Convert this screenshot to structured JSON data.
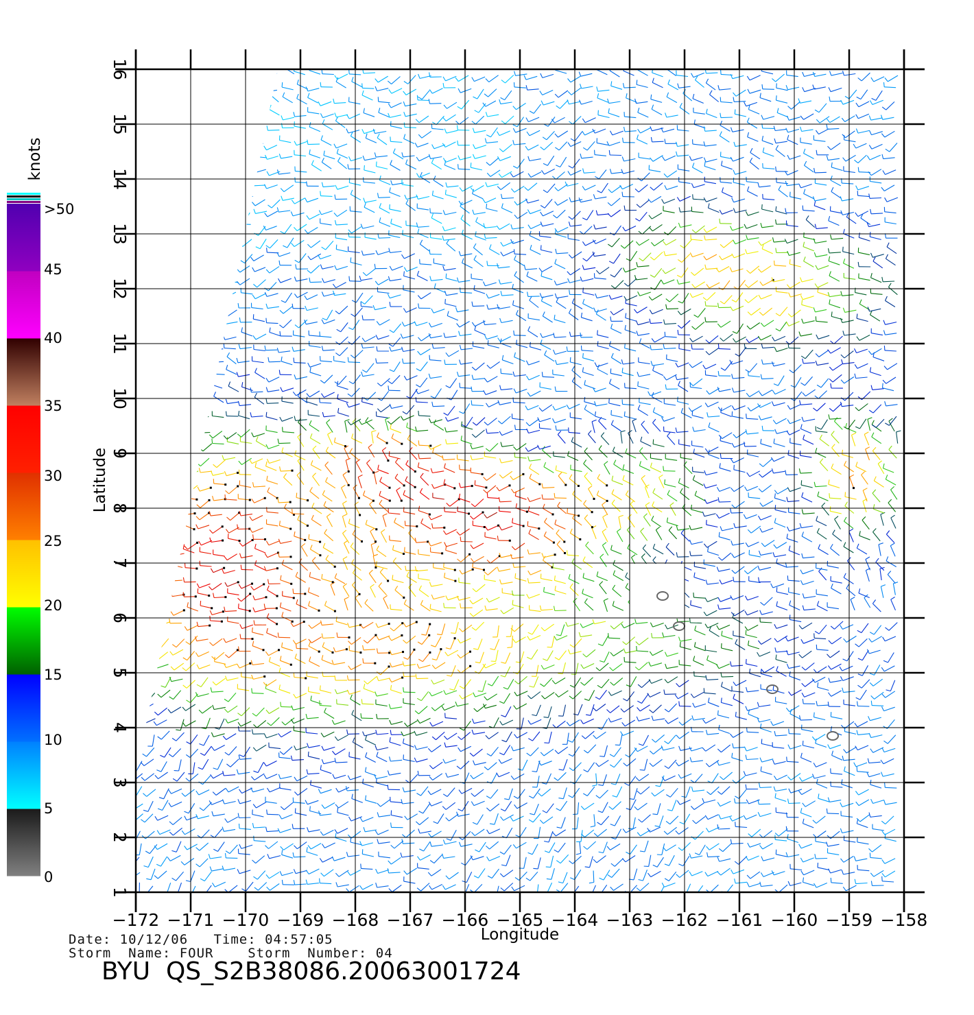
{
  "map": {
    "lon_range": [
      -172,
      -158
    ],
    "lat_range": [
      1,
      16
    ],
    "lon_ticks": [
      "−172",
      "−171",
      "−170",
      "−169",
      "−168",
      "−167",
      "−166",
      "−165",
      "−164",
      "−163",
      "−162",
      "−161",
      "−160",
      "−159",
      "−158"
    ],
    "lat_ticks": [
      "1",
      "2",
      "3",
      "4",
      "5",
      "6",
      "7",
      "8",
      "9",
      "10",
      "11",
      "12",
      "13",
      "14",
      "15",
      "16"
    ],
    "xlabel": "Longitude",
    "ylabel": "Latitude",
    "grid": true,
    "projection": "equirectangular",
    "content": "wind vector barbs colored by speed",
    "islands": [
      {
        "lon": -162.4,
        "lat": 6.4
      },
      {
        "lon": -162.1,
        "lat": 5.85
      },
      {
        "lon": -160.4,
        "lat": 4.7
      },
      {
        "lon": -159.3,
        "lat": 3.85
      }
    ]
  },
  "colorbar": {
    "unit": "knots",
    "labels": [
      ">50",
      "45",
      "40",
      "35",
      "30",
      "25",
      "20",
      "15",
      "10",
      "5",
      "0"
    ],
    "segments": [
      {
        "range": [
          0,
          5
        ],
        "colors": [
          "#808080",
          "#1a1a1a"
        ]
      },
      {
        "range": [
          5,
          10
        ],
        "colors": [
          "#00ffff",
          "#0080ff"
        ]
      },
      {
        "range": [
          10,
          15
        ],
        "colors": [
          "#0070ff",
          "#0000ff"
        ]
      },
      {
        "range": [
          15,
          20
        ],
        "colors": [
          "#006000",
          "#00ff00"
        ]
      },
      {
        "range": [
          20,
          25
        ],
        "colors": [
          "#ffff00",
          "#ffc000"
        ]
      },
      {
        "range": [
          25,
          30
        ],
        "colors": [
          "#ff8000",
          "#e03000"
        ]
      },
      {
        "range": [
          30,
          35
        ],
        "colors": [
          "#ff2000",
          "#ff0000"
        ]
      },
      {
        "range": [
          35,
          40
        ],
        "colors": [
          "#c08060",
          "#300000"
        ]
      },
      {
        "range": [
          40,
          45
        ],
        "colors": [
          "#ff00ff",
          "#c000c0"
        ]
      },
      {
        "range": [
          45,
          50
        ],
        "colors": [
          "#9000c0",
          "#5000b0"
        ]
      }
    ]
  },
  "info": {
    "date_line": "Date: 10/12/06   Time: 04:57:05",
    "storm_line": "Storm  Name: FOUR    Storm  Number: 04",
    "title": "BYU  QS_S2B38086.20063001724"
  }
}
